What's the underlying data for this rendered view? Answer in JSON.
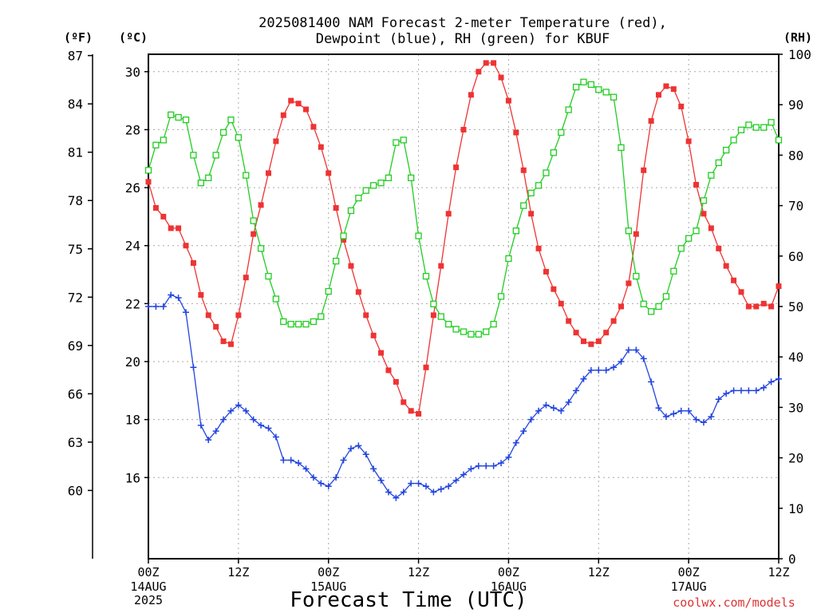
{
  "chart_data": {
    "type": "line",
    "title_line1": "2025081400 NAM Forecast 2-meter Temperature (red),",
    "title_line2": "Dewpoint (blue), RH (green) for KBUF",
    "xlabel": "Forecast Time (UTC)",
    "unit_f": "(ºF)",
    "unit_c": "(ºC)",
    "unit_rh": "(RH)",
    "credit": "coolwx.com/models",
    "grid": true,
    "x_range_hours": [
      0,
      84
    ],
    "x_ticks": [
      {
        "hour": 0,
        "label": "00Z",
        "date": "14AUG",
        "year": "2025"
      },
      {
        "hour": 12,
        "label": "12Z",
        "date": "",
        "year": ""
      },
      {
        "hour": 24,
        "label": "00Z",
        "date": "15AUG",
        "year": ""
      },
      {
        "hour": 36,
        "label": "12Z",
        "date": "",
        "year": ""
      },
      {
        "hour": 48,
        "label": "00Z",
        "date": "16AUG",
        "year": ""
      },
      {
        "hour": 60,
        "label": "12Z",
        "date": "",
        "year": ""
      },
      {
        "hour": 72,
        "label": "00Z",
        "date": "17AUG",
        "year": ""
      },
      {
        "hour": 84,
        "label": "12Z",
        "date": "",
        "year": ""
      }
    ],
    "y_c_range": [
      13.2,
      30.6
    ],
    "y_c_ticks": [
      "16",
      "18",
      "20",
      "22",
      "24",
      "26",
      "28",
      "30"
    ],
    "y_f_ticks": [
      "60",
      "63",
      "66",
      "69",
      "72",
      "75",
      "78",
      "81",
      "84",
      "87"
    ],
    "y_rh_range": [
      0,
      100
    ],
    "y_rh_ticks": [
      "0",
      "10",
      "20",
      "30",
      "40",
      "50",
      "60",
      "70",
      "80",
      "90",
      "100"
    ],
    "series": [
      {
        "key": "temperature",
        "axis": "c",
        "color": "#ee3333",
        "marker": "filled-square",
        "x": [
          0,
          1,
          2,
          3,
          4,
          5,
          6,
          7,
          8,
          9,
          10,
          11,
          12,
          13,
          14,
          15,
          16,
          17,
          18,
          19,
          20,
          21,
          22,
          23,
          24,
          25,
          26,
          27,
          28,
          29,
          30,
          31,
          32,
          33,
          34,
          35,
          36,
          37,
          38,
          39,
          40,
          41,
          42,
          43,
          44,
          45,
          46,
          47,
          48,
          49,
          50,
          51,
          52,
          53,
          54,
          55,
          56,
          57,
          58,
          59,
          60,
          61,
          62,
          63,
          64,
          65,
          66,
          67,
          68,
          69,
          70,
          71,
          72,
          73,
          74,
          75,
          76,
          77,
          78,
          79,
          80,
          81,
          82,
          83,
          84
        ],
        "values": [
          26.2,
          25.3,
          25.0,
          24.6,
          24.6,
          24.0,
          23.4,
          22.3,
          21.6,
          21.2,
          20.7,
          20.6,
          21.6,
          22.9,
          24.4,
          25.4,
          26.5,
          27.6,
          28.5,
          29.0,
          28.9,
          28.7,
          28.1,
          27.4,
          26.5,
          25.3,
          24.2,
          23.3,
          22.4,
          21.6,
          20.9,
          20.3,
          19.7,
          19.3,
          18.6,
          18.3,
          18.2,
          19.8,
          21.6,
          23.3,
          25.1,
          26.7,
          28.0,
          29.2,
          30.0,
          30.3,
          30.3,
          29.8,
          29.0,
          27.9,
          26.6,
          25.1,
          23.9,
          23.1,
          22.5,
          22.0,
          21.4,
          21.0,
          20.7,
          20.6,
          20.7,
          21.0,
          21.4,
          21.9,
          22.7,
          24.4,
          26.6,
          28.3,
          29.2,
          29.5,
          29.4,
          28.8,
          27.6,
          26.1,
          25.1,
          24.6,
          23.9,
          23.3,
          22.8,
          22.4,
          21.9,
          21.9,
          22.0,
          21.9,
          22.6
        ]
      },
      {
        "key": "dewpoint",
        "axis": "c",
        "color": "#2244dd",
        "marker": "plus",
        "x": [
          0,
          1,
          2,
          3,
          4,
          5,
          6,
          7,
          8,
          9,
          10,
          11,
          12,
          13,
          14,
          15,
          16,
          17,
          18,
          19,
          20,
          21,
          22,
          23,
          24,
          25,
          26,
          27,
          28,
          29,
          30,
          31,
          32,
          33,
          34,
          35,
          36,
          37,
          38,
          39,
          40,
          41,
          42,
          43,
          44,
          45,
          46,
          47,
          48,
          49,
          50,
          51,
          52,
          53,
          54,
          55,
          56,
          57,
          58,
          59,
          60,
          61,
          62,
          63,
          64,
          65,
          66,
          67,
          68,
          69,
          70,
          71,
          72,
          73,
          74,
          75,
          76,
          77,
          78,
          79,
          80,
          81,
          82,
          83,
          84
        ],
        "values": [
          21.9,
          21.9,
          21.9,
          22.3,
          22.2,
          21.7,
          19.8,
          17.8,
          17.3,
          17.6,
          18.0,
          18.3,
          18.5,
          18.3,
          18.0,
          17.8,
          17.7,
          17.4,
          16.6,
          16.6,
          16.5,
          16.3,
          16.0,
          15.8,
          15.7,
          16.0,
          16.6,
          17.0,
          17.1,
          16.8,
          16.3,
          15.9,
          15.5,
          15.3,
          15.5,
          15.8,
          15.8,
          15.7,
          15.5,
          15.6,
          15.7,
          15.9,
          16.1,
          16.3,
          16.4,
          16.4,
          16.4,
          16.5,
          16.7,
          17.2,
          17.6,
          18.0,
          18.3,
          18.5,
          18.4,
          18.3,
          18.6,
          19.0,
          19.4,
          19.7,
          19.7,
          19.7,
          19.8,
          20.0,
          20.4,
          20.4,
          20.1,
          19.3,
          18.4,
          18.1,
          18.2,
          18.3,
          18.3,
          18.0,
          17.9,
          18.1,
          18.7,
          18.9,
          19.0,
          19.0,
          19.0,
          19.0,
          19.1,
          19.3,
          19.4
        ]
      },
      {
        "key": "rh",
        "axis": "rh",
        "color": "#22cc22",
        "marker": "open-square",
        "x": [
          0,
          1,
          2,
          3,
          4,
          5,
          6,
          7,
          8,
          9,
          10,
          11,
          12,
          13,
          14,
          15,
          16,
          17,
          18,
          19,
          20,
          21,
          22,
          23,
          24,
          25,
          26,
          27,
          28,
          29,
          30,
          31,
          32,
          33,
          34,
          35,
          36,
          37,
          38,
          39,
          40,
          41,
          42,
          43,
          44,
          45,
          46,
          47,
          48,
          49,
          50,
          51,
          52,
          53,
          54,
          55,
          56,
          57,
          58,
          59,
          60,
          61,
          62,
          63,
          64,
          65,
          66,
          67,
          68,
          69,
          70,
          71,
          72,
          73,
          74,
          75,
          76,
          77,
          78,
          79,
          80,
          81,
          82,
          83,
          84
        ],
        "values": [
          77,
          82,
          83,
          88,
          87.5,
          87,
          80,
          74.5,
          75.5,
          80,
          84.5,
          87,
          83.5,
          76,
          67,
          61.5,
          56,
          51.5,
          47,
          46.5,
          46.5,
          46.5,
          47,
          48,
          53,
          59,
          64,
          69,
          71.5,
          73,
          74,
          74.5,
          75.5,
          82.5,
          83,
          75.5,
          64,
          56,
          50.5,
          48,
          46.5,
          45.5,
          45,
          44.5,
          44.5,
          45,
          46.5,
          52,
          59.5,
          65,
          70,
          72.5,
          74,
          76.5,
          80.5,
          84.5,
          89,
          93.5,
          94.5,
          94,
          93,
          92.5,
          91.5,
          81.5,
          65,
          56,
          50.5,
          49,
          50,
          52,
          57,
          61.5,
          63.5,
          65,
          71,
          76,
          78.5,
          81,
          83,
          85,
          86,
          85.5,
          85.5,
          86.5,
          83
        ]
      }
    ]
  }
}
